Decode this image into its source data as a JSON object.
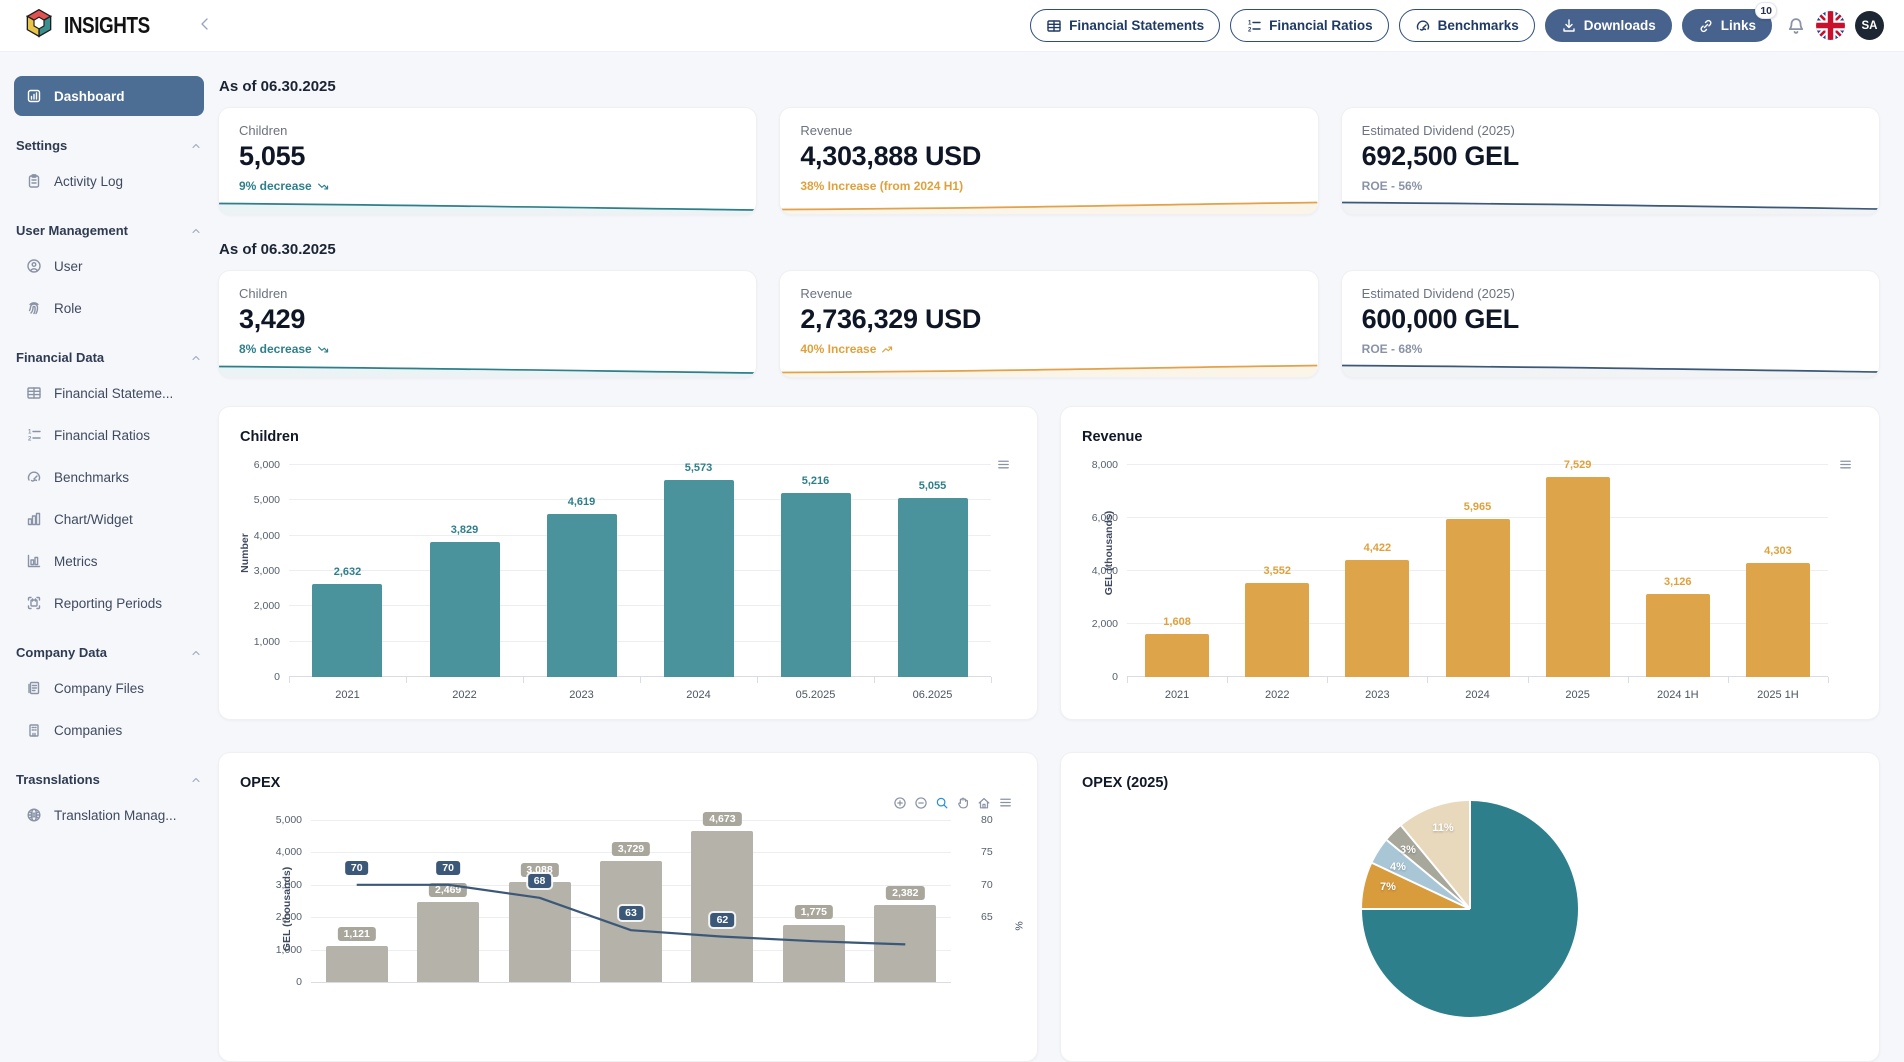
{
  "header": {
    "brand": "INSIGHTS",
    "actions": [
      {
        "label": "Financial Statements",
        "icon": "table-icon",
        "style": "outline"
      },
      {
        "label": "Financial Ratios",
        "icon": "ordered-list-icon",
        "style": "outline"
      },
      {
        "label": "Benchmarks",
        "icon": "gauge-icon",
        "style": "outline"
      },
      {
        "label": "Downloads",
        "icon": "download-icon",
        "style": "solid"
      },
      {
        "label": "Links",
        "icon": "link-icon",
        "style": "solid",
        "badge": "10"
      }
    ],
    "avatar": "SA"
  },
  "sidebar": {
    "dashboard": {
      "label": "Dashboard",
      "icon": "bar-chart-icon",
      "active": true
    },
    "sections": [
      {
        "title": "Settings",
        "items": [
          {
            "label": "Activity Log",
            "icon": "clipboard-icon"
          }
        ]
      },
      {
        "title": "User Management",
        "items": [
          {
            "label": "User",
            "icon": "user-icon"
          },
          {
            "label": "Role",
            "icon": "fingerprint-icon"
          }
        ]
      },
      {
        "title": "Financial Data",
        "items": [
          {
            "label": "Financial Stateme...",
            "icon": "table-icon"
          },
          {
            "label": "Financial Ratios",
            "icon": "ordered-list-icon"
          },
          {
            "label": "Benchmarks",
            "icon": "gauge-icon"
          },
          {
            "label": "Chart/Widget",
            "icon": "column-chart-icon"
          },
          {
            "label": "Metrics",
            "icon": "metrics-icon"
          },
          {
            "label": "Reporting Periods",
            "icon": "calendar-icon"
          }
        ]
      },
      {
        "title": "Company Data",
        "items": [
          {
            "label": "Company Files",
            "icon": "file-icon"
          },
          {
            "label": "Companies",
            "icon": "building-icon"
          }
        ]
      },
      {
        "title": "Trasnslations",
        "items": [
          {
            "label": "Translation Manag...",
            "icon": "globe-icon"
          }
        ]
      }
    ]
  },
  "kpi_sections": [
    {
      "as_of": "As of 06.30.2025",
      "cards": [
        {
          "label": "Children",
          "value": "5,055",
          "sub": "9% decrease",
          "trend": "down",
          "sub_color": "#2e7f8a",
          "spark": "teal"
        },
        {
          "label": "Revenue",
          "value": "4,303,888 USD",
          "sub": "38% Increase (from 2024 H1)",
          "trend": "none",
          "sub_color": "#dfa13c",
          "spark": "orange"
        },
        {
          "label": "Estimated Dividend (2025)",
          "value": "692,500 GEL",
          "sub": "ROE - 56%",
          "trend": "none",
          "sub_color": "#8a93a6",
          "spark": "navy"
        }
      ]
    },
    {
      "as_of": "As of 06.30.2025",
      "cards": [
        {
          "label": "Children",
          "value": "3,429",
          "sub": "8% decrease",
          "trend": "down",
          "sub_color": "#2e7f8a",
          "spark": "teal"
        },
        {
          "label": "Revenue",
          "value": "2,736,329 USD",
          "sub": "40% Increase",
          "trend": "up",
          "sub_color": "#dfa13c",
          "spark": "orange"
        },
        {
          "label": "Estimated Dividend (2025)",
          "value": "600,000 GEL",
          "sub": "ROE - 68%",
          "trend": "none",
          "sub_color": "#8a93a6",
          "spark": "navy"
        }
      ]
    }
  ],
  "chart_data": [
    {
      "id": "children",
      "type": "bar",
      "title": "Children",
      "ylabel": "Number",
      "categories": [
        "2021",
        "2022",
        "2023",
        "2024",
        "05.2025",
        "06.2025"
      ],
      "values": [
        2632,
        3829,
        4619,
        5573,
        5216,
        5055
      ],
      "labels": [
        "2,632",
        "3,829",
        "4,619",
        "5,573",
        "5,216",
        "5,055"
      ],
      "ylim": [
        0,
        6000
      ],
      "ytick_step": 1000,
      "grid": true,
      "bar_color": "#4a939d",
      "label_color": "#2e7f8a"
    },
    {
      "id": "revenue",
      "type": "bar",
      "title": "Revenue",
      "ylabel": "GEL (thousands)",
      "categories": [
        "2021",
        "2022",
        "2023",
        "2024",
        "2025",
        "2024 1H",
        "2025 1H"
      ],
      "values": [
        1608,
        3552,
        4422,
        5965,
        7529,
        3126,
        4303
      ],
      "labels": [
        "1,608",
        "3,552",
        "4,422",
        "5,965",
        "7,529",
        "3,126",
        "4,303"
      ],
      "ylim": [
        0,
        8000
      ],
      "ytick_step": 2000,
      "grid": true,
      "bar_color": "#dda44a",
      "label_color": "#dfa13c"
    },
    {
      "id": "opex",
      "type": "bar+line",
      "title": "OPEX",
      "ylabel_left": "GEL (thousands)",
      "ylabel_right": "%",
      "bars": [
        1121,
        2469,
        3088,
        3729,
        4673,
        1775,
        2382
      ],
      "bar_labels": [
        "1,121",
        "2,469",
        "3,088",
        "3,729",
        "4,673",
        "1,775",
        "2,382"
      ],
      "line": [
        70,
        70,
        68,
        63,
        62
      ],
      "line_labels": [
        "70",
        "70",
        "68",
        "63",
        "62"
      ],
      "ylim_left": [
        0,
        5000
      ],
      "ytick_step_left": 1000,
      "yticks_right": [
        65,
        70,
        75,
        80
      ],
      "ylim_right": [
        60,
        80
      ],
      "grid": true,
      "bar_color": "#b5b2a9",
      "line_color": "#3b5878"
    },
    {
      "id": "opex-2025",
      "type": "pie",
      "title": "OPEX (2025)",
      "slices": [
        {
          "pct": 75,
          "color": "#2e7f8c",
          "label": ""
        },
        {
          "pct": 7,
          "color": "#d89c3d",
          "label": "7%"
        },
        {
          "pct": 4,
          "color": "#a9c6d6",
          "label": "4%"
        },
        {
          "pct": 3,
          "color": "#a8a79c",
          "label": "3%"
        },
        {
          "pct": 11,
          "color": "#e8d9bd",
          "label": "11%"
        }
      ]
    }
  ]
}
